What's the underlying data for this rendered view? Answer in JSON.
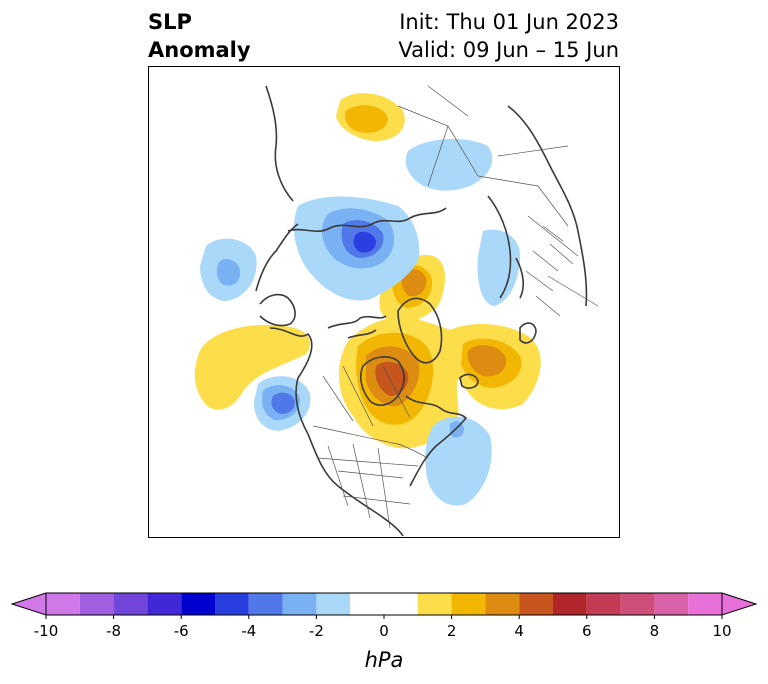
{
  "header": {
    "title_line1": "SLP",
    "title_line2": "Anomaly",
    "init_text": "Init: Thu 01 Jun 2023",
    "valid_text": "Valid: 09 Jun – 15 Jun"
  },
  "colorbar": {
    "unit": "hPa",
    "tick_labels": [
      "-10",
      "-8",
      "-6",
      "-4",
      "-2",
      "0",
      "2",
      "4",
      "6",
      "8",
      "10"
    ],
    "bins": [
      {
        "min": -10,
        "max": -9,
        "color": "#d178e8"
      },
      {
        "min": -9,
        "max": -8,
        "color": "#a25ee0"
      },
      {
        "min": -8,
        "max": -7,
        "color": "#7246db"
      },
      {
        "min": -7,
        "max": -6,
        "color": "#4028d6"
      },
      {
        "min": -6,
        "max": -5,
        "color": "#0000cf"
      },
      {
        "min": -5,
        "max": -4,
        "color": "#2a3fe0"
      },
      {
        "min": -4,
        "max": -3,
        "color": "#5078e8"
      },
      {
        "min": -3,
        "max": -2,
        "color": "#7ab1f2"
      },
      {
        "min": -2,
        "max": -1,
        "color": "#aad8f9"
      },
      {
        "min": -1,
        "max": 1,
        "color": "#ffffff"
      },
      {
        "min": 1,
        "max": 2,
        "color": "#fcdd4a"
      },
      {
        "min": 2,
        "max": 3,
        "color": "#f2b705"
      },
      {
        "min": 3,
        "max": 4,
        "color": "#dd8c12"
      },
      {
        "min": 4,
        "max": 5,
        "color": "#c6561d"
      },
      {
        "min": 5,
        "max": 6,
        "color": "#b1262a"
      },
      {
        "min": 6,
        "max": 7,
        "color": "#c23a53"
      },
      {
        "min": 7,
        "max": 8,
        "color": "#cf4f7b"
      },
      {
        "min": 8,
        "max": 9,
        "color": "#da62a8"
      },
      {
        "min": 9,
        "max": 10,
        "color": "#e870d9"
      }
    ],
    "extend": "both"
  },
  "map": {
    "projection": "north-polar-stereographic",
    "field": "sea level pressure anomaly",
    "features": [
      {
        "region": "Hudson Bay / central Canada",
        "anomaly": "positive",
        "peak_hpa": 5
      },
      {
        "region": "Greenland / Baffin",
        "anomaly": "positive",
        "peak_hpa": 3
      },
      {
        "region": "North Atlantic",
        "anomaly": "positive",
        "peak_hpa": 3
      },
      {
        "region": "Northern Europe / Scandinavia",
        "anomaly": "positive",
        "peak_hpa": 2
      },
      {
        "region": "Gulf of Alaska",
        "anomaly": "positive",
        "peak_hpa": 1
      },
      {
        "region": "Siberian Arctic",
        "anomaly": "negative",
        "peak_hpa": -5
      },
      {
        "region": "NE Pacific",
        "anomaly": "negative",
        "peak_hpa": -4
      },
      {
        "region": "Bering Sea",
        "anomaly": "negative",
        "peak_hpa": -3
      },
      {
        "region": "East Asia",
        "anomaly": "negative",
        "peak_hpa": -2
      },
      {
        "region": "Western Atlantic / US East Coast",
        "anomaly": "negative",
        "peak_hpa": -2
      }
    ]
  }
}
